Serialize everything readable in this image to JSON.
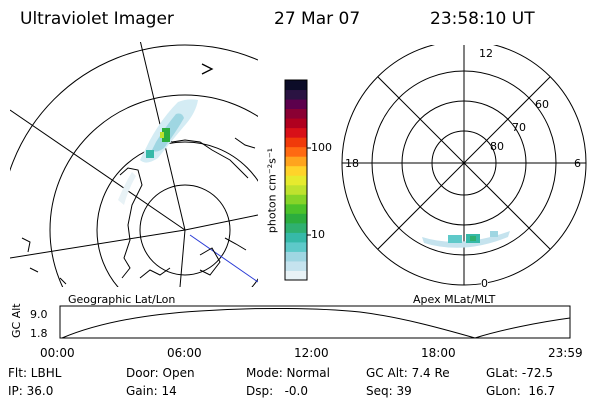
{
  "header": {
    "instrument": "Ultraviolet Imager",
    "date": "27 Mar 07",
    "time": "23:58:10 UT"
  },
  "geo_panel": {
    "caption": "Geographic Lat/Lon"
  },
  "polar_panel": {
    "caption": "Apex MLat/MLT",
    "mlt_labels": [
      "12",
      "18",
      "6",
      "0"
    ],
    "mlat_labels": [
      "60",
      "70",
      "80"
    ]
  },
  "colorbar": {
    "unit_label": "photon cm⁻²s⁻¹",
    "tick_labels": [
      "100",
      "10"
    ],
    "colors": [
      "#e8f2f6",
      "#c5e3ee",
      "#9fd6e2",
      "#5ec9c9",
      "#36b9a8",
      "#2fb070",
      "#2cad3e",
      "#4cc22a",
      "#86d428",
      "#bfe22e",
      "#e6ea2e",
      "#ffd32a",
      "#ffa41e",
      "#ff6a12",
      "#f03a0a",
      "#d81018",
      "#b0001f",
      "#8a0033",
      "#5c004c",
      "#2a1342",
      "#0c0c28"
    ]
  },
  "altitude_strip": {
    "ylabel": "GC Alt",
    "ymax_label": "9.0",
    "ymin_label": "1.8",
    "time_labels": [
      "00:00",
      "06:00",
      "12:00",
      "18:00",
      "23:59"
    ]
  },
  "footer": {
    "flt": "Flt: LBHL",
    "ip": "IP: 36.0",
    "door": "Door: Open",
    "gain": "Gain: 14",
    "mode": "Mode: Normal",
    "dsp": "Dsp:   -0.0",
    "gc_alt": "GC Alt: 7.4 Re",
    "seq": "Seq: 39",
    "glat": "GLat: -72.5",
    "glon": "GLon:  16.7"
  }
}
